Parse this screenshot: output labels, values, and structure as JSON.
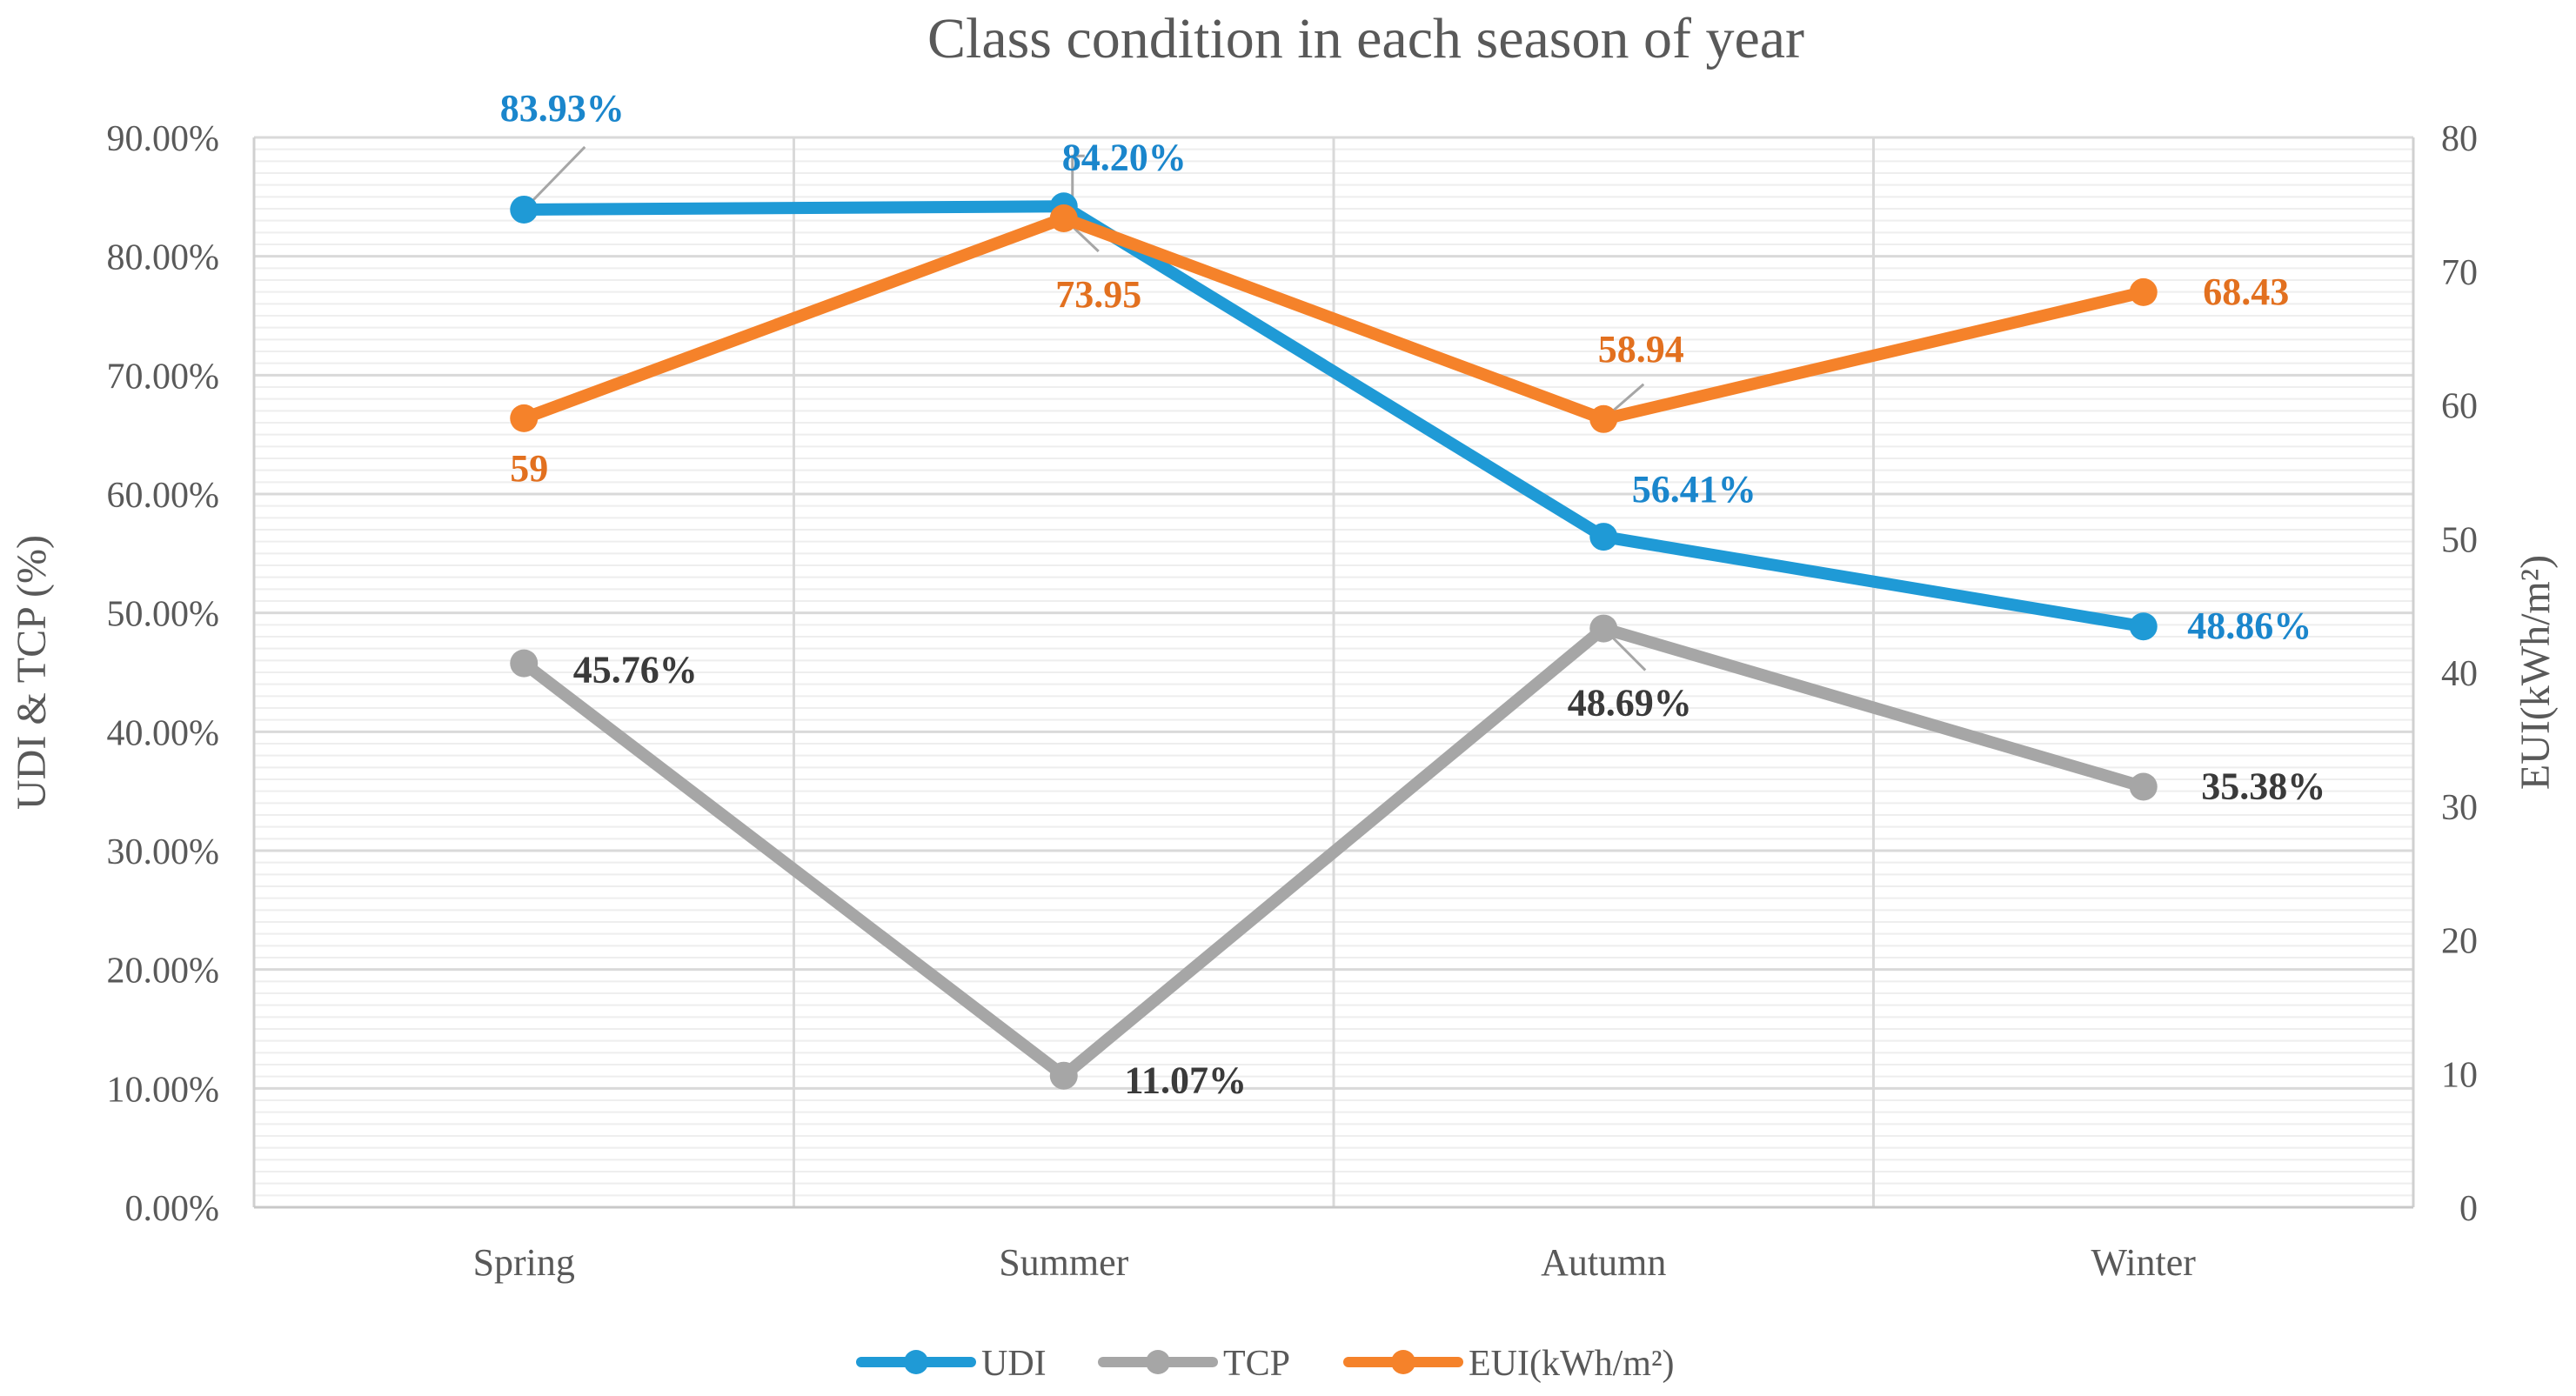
{
  "chart_data": {
    "type": "line",
    "title": "Class condition in each season of year",
    "categories": [
      "Spring",
      "Summer",
      "Autumn",
      "Winter"
    ],
    "ylabel_left": "UDI & TCP (%)",
    "ylabel_right": "EUI(kWh/m²)",
    "ylim_left": [
      0,
      90
    ],
    "ylim_right": [
      0,
      80
    ],
    "yticks_left": [
      "0.00%",
      "10.00%",
      "20.00%",
      "30.00%",
      "40.00%",
      "50.00%",
      "60.00%",
      "70.00%",
      "80.00%",
      "90.00%"
    ],
    "yticks_right": [
      "0",
      "10",
      "20",
      "30",
      "40",
      "50",
      "60",
      "70",
      "80"
    ],
    "grid": true,
    "legend_position": "bottom",
    "series": [
      {
        "name": "UDI",
        "axis": "left",
        "color": "#1f9ad6",
        "label_color": "#1a86cc",
        "values": [
          83.93,
          84.2,
          56.41,
          48.86
        ],
        "labels": [
          "83.93%",
          "84.20%",
          "56.41%",
          "48.86%"
        ]
      },
      {
        "name": "TCP",
        "axis": "left",
        "color": "#a6a6a6",
        "label_color": "#3a3a3a",
        "values": [
          45.76,
          11.07,
          48.69,
          35.38
        ],
        "labels": [
          "45.76%",
          "11.07%",
          "48.69%",
          "35.38%"
        ]
      },
      {
        "name": "EUI(kWh/m²)",
        "axis": "right",
        "color": "#f5822a",
        "label_color": "#e2701f",
        "values": [
          59,
          73.95,
          58.94,
          68.43
        ],
        "labels": [
          "59",
          "73.95",
          "58.94",
          "68.43"
        ]
      }
    ]
  }
}
